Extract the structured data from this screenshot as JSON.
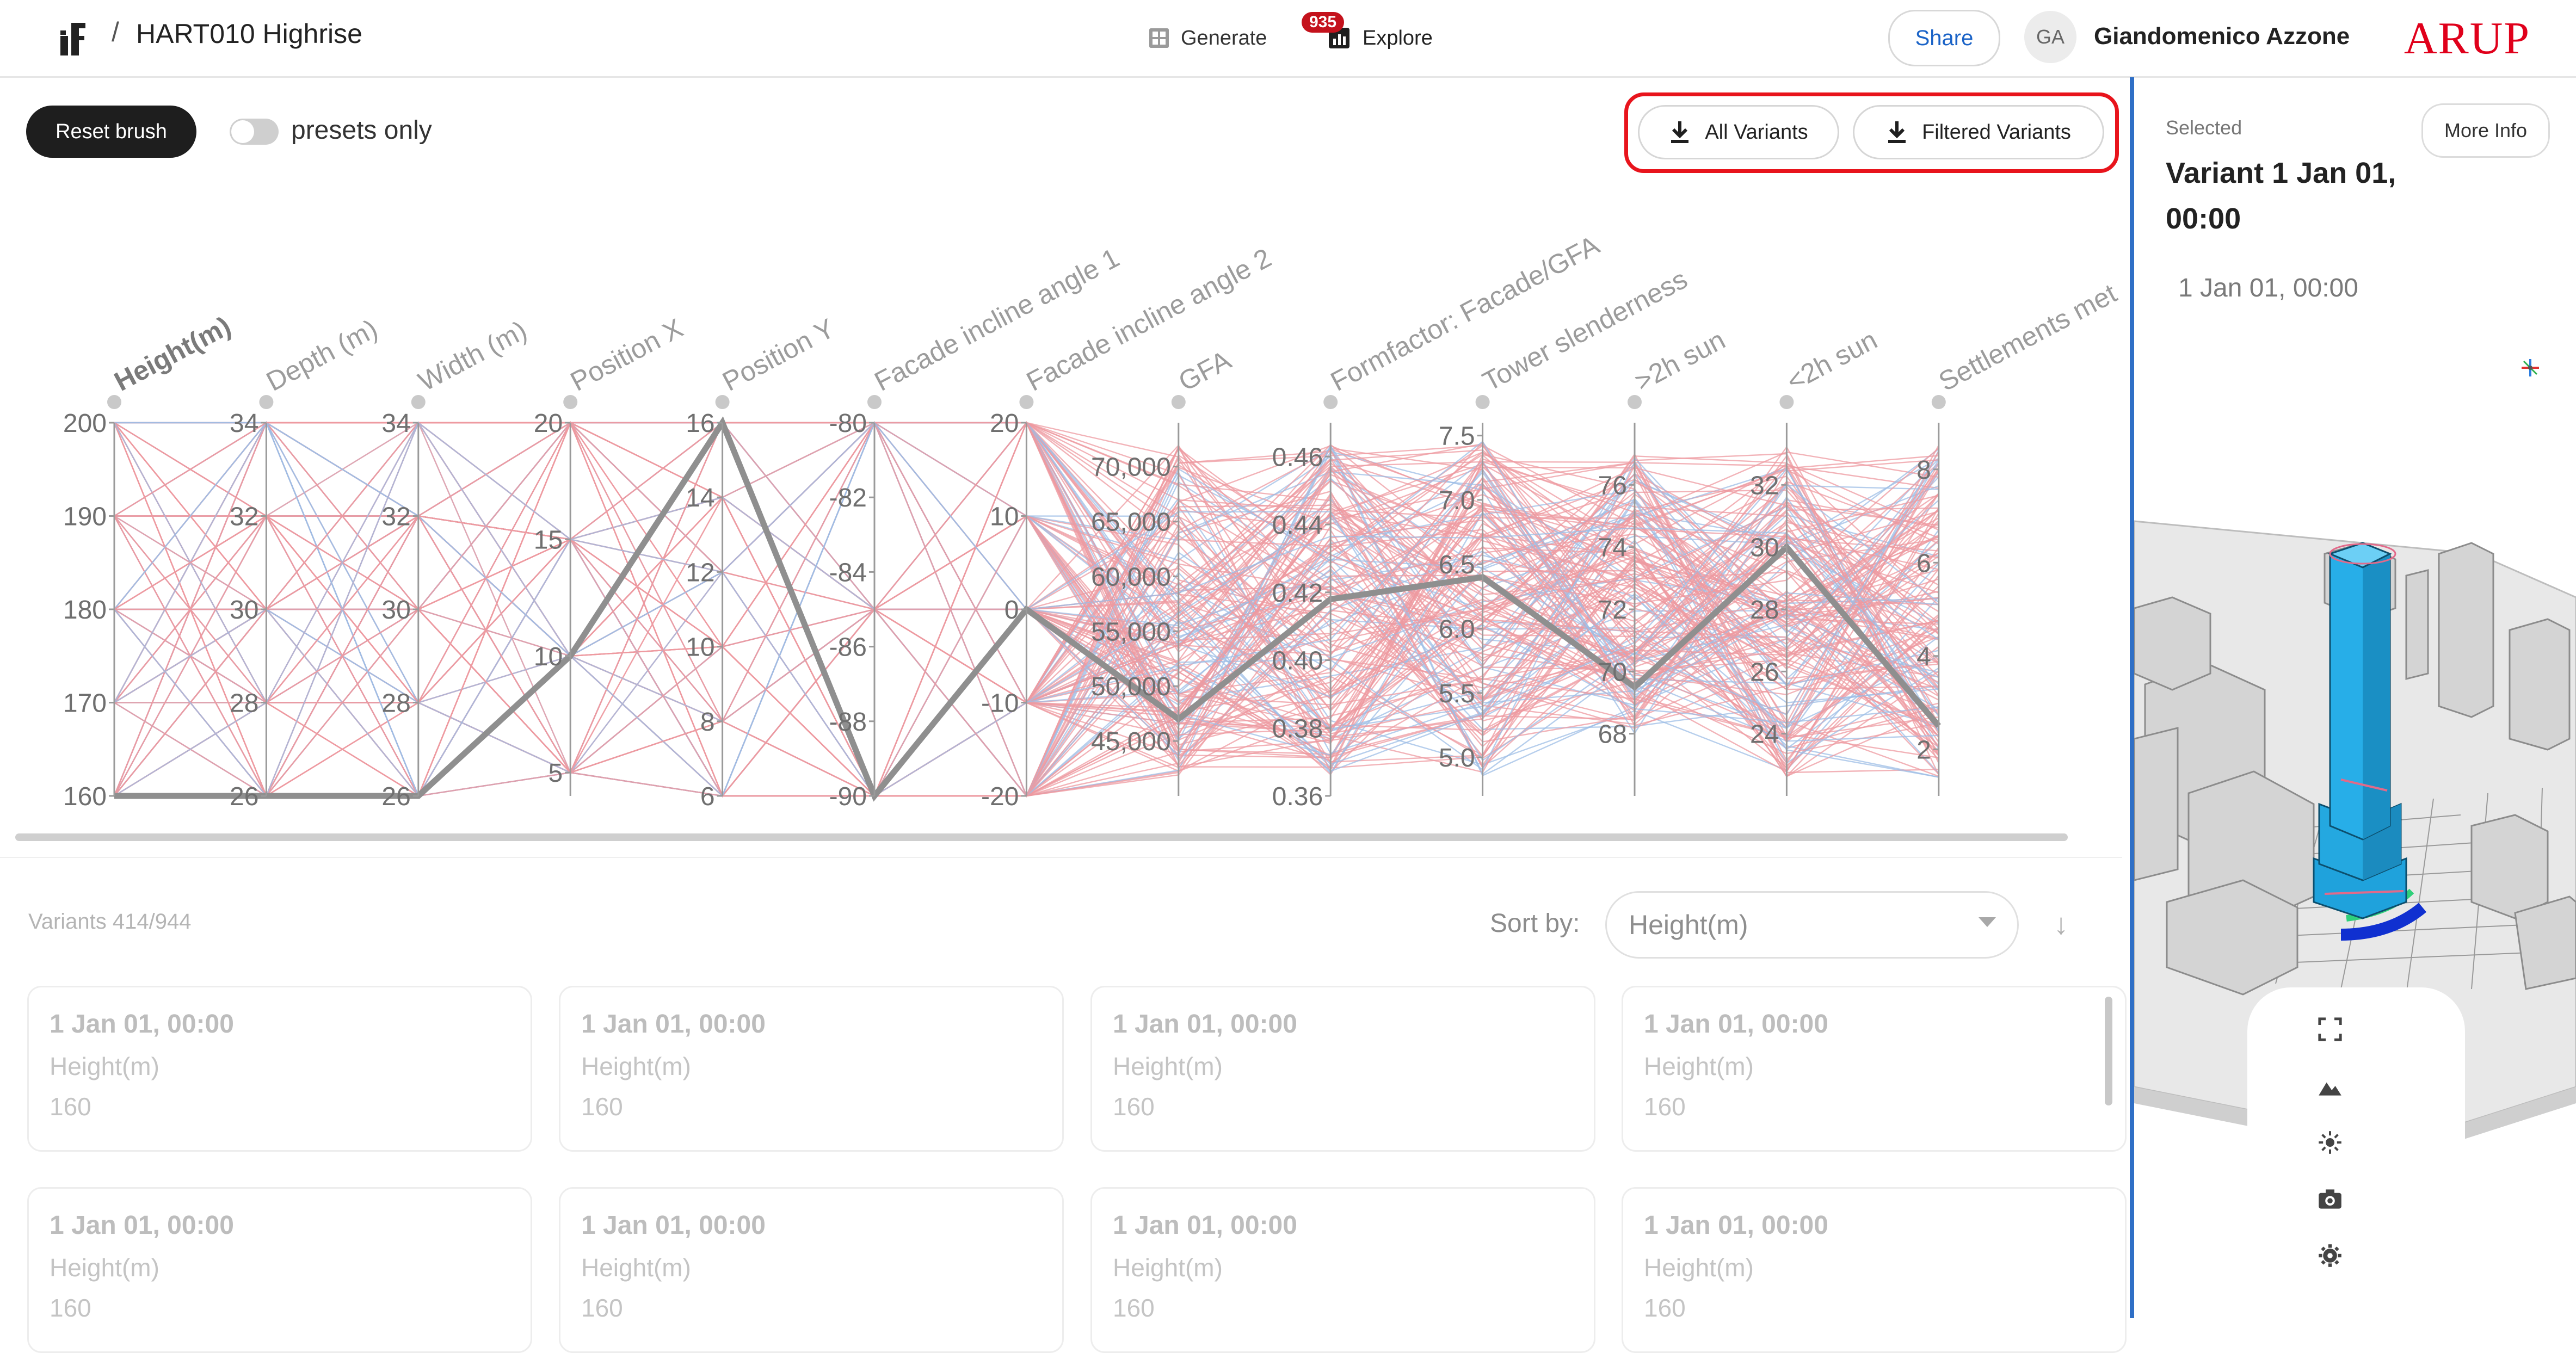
{
  "header": {
    "breadcrumb_sep": "/",
    "project_title": "HART010 Highrise",
    "nav": {
      "generate": "Generate",
      "explore": "Explore",
      "explore_badge": "935"
    },
    "share": "Share",
    "user_initials": "GA",
    "user_name": "Giandomenico Azzone",
    "brand": "ARUP"
  },
  "toolbar": {
    "reset_brush": "Reset brush",
    "presets_only": "presets only",
    "presets_only_on": false,
    "download_all": "All Variants",
    "download_filtered": "Filtered Variants"
  },
  "chart_data": {
    "type": "parallel-coordinates",
    "axes": [
      {
        "name": "Height(m)",
        "range": [
          160,
          200
        ],
        "ticks": [
          "200",
          "190",
          "180",
          "170",
          "160"
        ],
        "bold": true
      },
      {
        "name": "Depth (m)",
        "range": [
          26,
          34
        ],
        "ticks": [
          "34",
          "32",
          "30",
          "28",
          "26"
        ]
      },
      {
        "name": "Width (m)",
        "range": [
          26,
          34
        ],
        "ticks": [
          "34",
          "32",
          "30",
          "28",
          "26"
        ]
      },
      {
        "name": "Position X",
        "range": [
          4,
          20
        ],
        "ticks": [
          "20",
          "15",
          "10",
          "5"
        ]
      },
      {
        "name": "Position Y",
        "range": [
          6,
          16
        ],
        "ticks": [
          "16",
          "14",
          "12",
          "10",
          "8",
          "6"
        ]
      },
      {
        "name": "Facade incline angle 1",
        "range": [
          -90,
          -80
        ],
        "ticks": [
          "-80",
          "-82",
          "-84",
          "-86",
          "-88",
          "-90"
        ]
      },
      {
        "name": "Facade incline angle 2",
        "range": [
          -20,
          20
        ],
        "ticks": [
          "20",
          "10",
          "0",
          "-10",
          "-20"
        ]
      },
      {
        "name": "GFA",
        "range": [
          40000,
          74000
        ],
        "ticks": [
          "70,000",
          "65,000",
          "60,000",
          "55,000",
          "50,000",
          "45,000"
        ]
      },
      {
        "name": "Formfactor: Facade/GFA",
        "range": [
          0.36,
          0.47
        ],
        "ticks": [
          "0.46",
          "0.44",
          "0.42",
          "0.40",
          "0.38",
          "0.36"
        ]
      },
      {
        "name": "Tower slenderness",
        "range": [
          4.7,
          7.6
        ],
        "ticks": [
          "7.5",
          "7.0",
          "6.5",
          "6.0",
          "5.5",
          "5.0"
        ]
      },
      {
        "name": ">2h sun",
        "range": [
          66,
          78
        ],
        "ticks": [
          "76",
          "74",
          "72",
          "70",
          "68"
        ]
      },
      {
        "name": "<2h sun",
        "range": [
          22,
          34
        ],
        "ticks": [
          "32",
          "30",
          "28",
          "26",
          "24"
        ]
      },
      {
        "name": "Settlements met",
        "range": [
          1,
          9
        ],
        "ticks": [
          "8",
          "6",
          "4",
          "2"
        ]
      }
    ],
    "selected_line": [
      160,
      26,
      26,
      10,
      16,
      -90,
      0,
      47000,
      0.418,
      6.4,
      69.5,
      30,
      2.5
    ],
    "colors": {
      "filtered": "#ee9aa0",
      "other": "#9dbde6",
      "selected": "#8f8f8f"
    },
    "filtered_count": 414,
    "total_count": 944
  },
  "variants": {
    "count_label": "Variants 414/944",
    "sort_label": "Sort by:",
    "sort_value": "Height(m)",
    "sort_dir_icon": "↓",
    "cards": [
      {
        "date": "1 Jan 01, 00:00",
        "key": "Height(m)",
        "value": "160"
      },
      {
        "date": "1 Jan 01, 00:00",
        "key": "Height(m)",
        "value": "160"
      },
      {
        "date": "1 Jan 01, 00:00",
        "key": "Height(m)",
        "value": "160"
      },
      {
        "date": "1 Jan 01, 00:00",
        "key": "Height(m)",
        "value": "160"
      },
      {
        "date": "1 Jan 01, 00:00",
        "key": "Height(m)",
        "value": "160"
      },
      {
        "date": "1 Jan 01, 00:00",
        "key": "Height(m)",
        "value": "160"
      },
      {
        "date": "1 Jan 01, 00:00",
        "key": "Height(m)",
        "value": "160"
      },
      {
        "date": "1 Jan 01, 00:00",
        "key": "Height(m)",
        "value": "160"
      }
    ]
  },
  "selected": {
    "label": "Selected",
    "name": "Variant 1 Jan 01, 00:00",
    "more_info": "More Info",
    "date": "1 Jan 01, 00:00"
  },
  "viewer": {
    "tools": [
      "fullscreen-icon",
      "terrain-icon",
      "sun-icon",
      "camera-icon",
      "gear-icon"
    ],
    "tower_color": "#1fa2dc"
  }
}
